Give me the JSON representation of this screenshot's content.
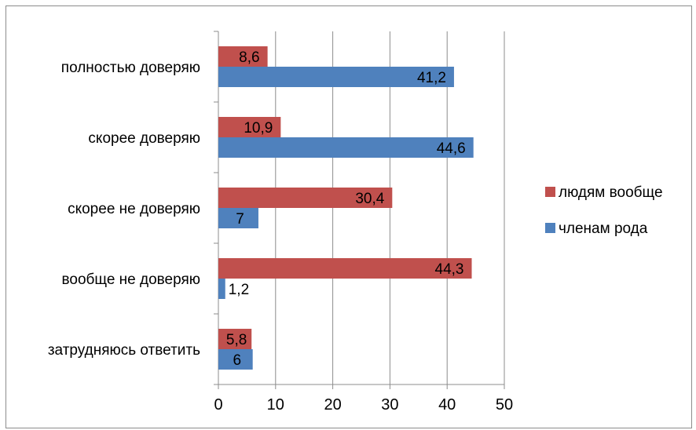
{
  "chart_data": {
    "type": "bar",
    "orientation": "horizontal",
    "categories": [
      "полностью доверяю",
      "скорее доверяю",
      "скорее не доверяю",
      "вообще не доверяю",
      "затрудняюсь ответить"
    ],
    "series": [
      {
        "name": "людям вообще",
        "color": "#c0504d",
        "values": [
          8.6,
          10.9,
          30.4,
          44.3,
          5.8
        ],
        "labels": [
          "8,6",
          "10,9",
          "30,4",
          "44,3",
          "5,8"
        ]
      },
      {
        "name": "членам рода",
        "color": "#4f81bd",
        "values": [
          41.2,
          44.6,
          7,
          1.2,
          6
        ],
        "labels": [
          "41,2",
          "44,6",
          "7",
          "1,2",
          "6"
        ]
      }
    ],
    "xlim": [
      0,
      50
    ],
    "xticks": [
      0,
      10,
      20,
      30,
      40,
      50
    ],
    "xtick_labels": [
      "0",
      "10",
      "20",
      "30",
      "40",
      "50"
    ],
    "grid": "vertical",
    "legend": "right"
  }
}
